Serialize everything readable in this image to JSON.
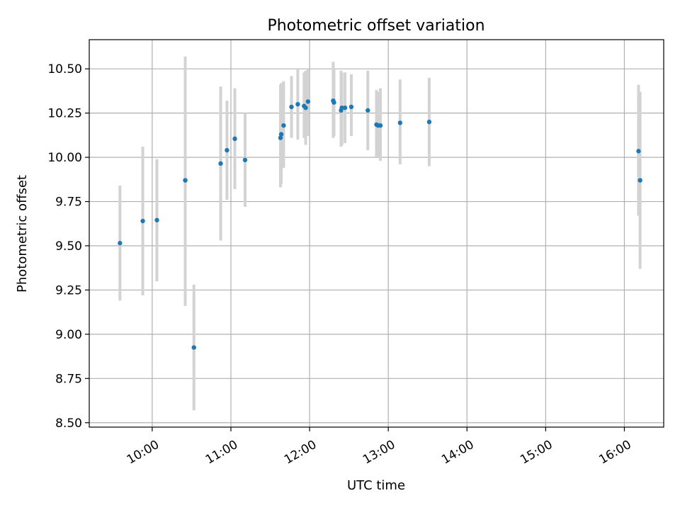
{
  "chart_data": {
    "type": "scatter",
    "title": "Photometric offset variation",
    "xlabel": "UTC time",
    "ylabel": "Photometric offset",
    "x_unit": "UTC hours",
    "xlim": [
      9.2,
      16.5
    ],
    "ylim": [
      8.475,
      10.665
    ],
    "x_ticks": [
      {
        "value": 10,
        "label": "10:00"
      },
      {
        "value": 11,
        "label": "11:00"
      },
      {
        "value": 12,
        "label": "12:00"
      },
      {
        "value": 13,
        "label": "13:00"
      },
      {
        "value": 14,
        "label": "14:00"
      },
      {
        "value": 15,
        "label": "15:00"
      },
      {
        "value": 16,
        "label": "16:00"
      }
    ],
    "y_ticks": [
      {
        "value": 8.5,
        "label": "8.50"
      },
      {
        "value": 8.75,
        "label": "8.75"
      },
      {
        "value": 9.0,
        "label": "9.00"
      },
      {
        "value": 9.25,
        "label": "9.25"
      },
      {
        "value": 9.5,
        "label": "9.50"
      },
      {
        "value": 9.75,
        "label": "9.75"
      },
      {
        "value": 10.0,
        "label": "10.00"
      },
      {
        "value": 10.25,
        "label": "10.25"
      },
      {
        "value": 10.5,
        "label": "10.50"
      }
    ],
    "grid": true,
    "marker_color": "#1f77b4",
    "errorbar_color": "#d3d3d3",
    "series": [
      {
        "points": [
          {
            "x": 9.59,
            "y": 9.515,
            "ylo": 9.19,
            "yhi": 9.84
          },
          {
            "x": 9.88,
            "y": 9.64,
            "ylo": 9.22,
            "yhi": 10.06
          },
          {
            "x": 10.06,
            "y": 9.645,
            "ylo": 9.3,
            "yhi": 9.99
          },
          {
            "x": 10.42,
            "y": 9.87,
            "ylo": 9.16,
            "yhi": 10.57
          },
          {
            "x": 10.53,
            "y": 8.925,
            "ylo": 8.57,
            "yhi": 9.28
          },
          {
            "x": 10.87,
            "y": 9.965,
            "ylo": 9.53,
            "yhi": 10.4
          },
          {
            "x": 10.95,
            "y": 10.04,
            "ylo": 9.76,
            "yhi": 10.32
          },
          {
            "x": 11.05,
            "y": 10.105,
            "ylo": 9.82,
            "yhi": 10.39
          },
          {
            "x": 11.18,
            "y": 9.985,
            "ylo": 9.72,
            "yhi": 10.25
          },
          {
            "x": 11.63,
            "y": 10.11,
            "ylo": 9.83,
            "yhi": 10.41
          },
          {
            "x": 11.64,
            "y": 10.13,
            "ylo": 9.85,
            "yhi": 10.42
          },
          {
            "x": 11.67,
            "y": 10.18,
            "ylo": 9.94,
            "yhi": 10.43
          },
          {
            "x": 11.77,
            "y": 10.285,
            "ylo": 10.11,
            "yhi": 10.46
          },
          {
            "x": 11.85,
            "y": 10.3,
            "ylo": 10.1,
            "yhi": 10.5
          },
          {
            "x": 11.93,
            "y": 10.29,
            "ylo": 10.11,
            "yhi": 10.48
          },
          {
            "x": 11.95,
            "y": 10.28,
            "ylo": 10.07,
            "yhi": 10.49
          },
          {
            "x": 11.98,
            "y": 10.315,
            "ylo": 10.12,
            "yhi": 10.5
          },
          {
            "x": 12.3,
            "y": 10.32,
            "ylo": 10.11,
            "yhi": 10.54
          },
          {
            "x": 12.31,
            "y": 10.31,
            "ylo": 10.12,
            "yhi": 10.5
          },
          {
            "x": 12.4,
            "y": 10.265,
            "ylo": 10.06,
            "yhi": 10.49
          },
          {
            "x": 12.41,
            "y": 10.28,
            "ylo": 10.07,
            "yhi": 10.48
          },
          {
            "x": 12.45,
            "y": 10.28,
            "ylo": 10.08,
            "yhi": 10.48
          },
          {
            "x": 12.53,
            "y": 10.285,
            "ylo": 10.12,
            "yhi": 10.47
          },
          {
            "x": 12.74,
            "y": 10.265,
            "ylo": 10.04,
            "yhi": 10.49
          },
          {
            "x": 12.85,
            "y": 10.185,
            "ylo": 10.0,
            "yhi": 10.38
          },
          {
            "x": 12.87,
            "y": 10.18,
            "ylo": 10.0,
            "yhi": 10.37
          },
          {
            "x": 12.9,
            "y": 10.18,
            "ylo": 9.98,
            "yhi": 10.39
          },
          {
            "x": 13.15,
            "y": 10.195,
            "ylo": 9.96,
            "yhi": 10.44
          },
          {
            "x": 13.52,
            "y": 10.2,
            "ylo": 9.95,
            "yhi": 10.45
          },
          {
            "x": 16.18,
            "y": 10.035,
            "ylo": 9.67,
            "yhi": 10.41
          },
          {
            "x": 16.2,
            "y": 9.87,
            "ylo": 9.37,
            "yhi": 10.37
          }
        ]
      }
    ]
  }
}
